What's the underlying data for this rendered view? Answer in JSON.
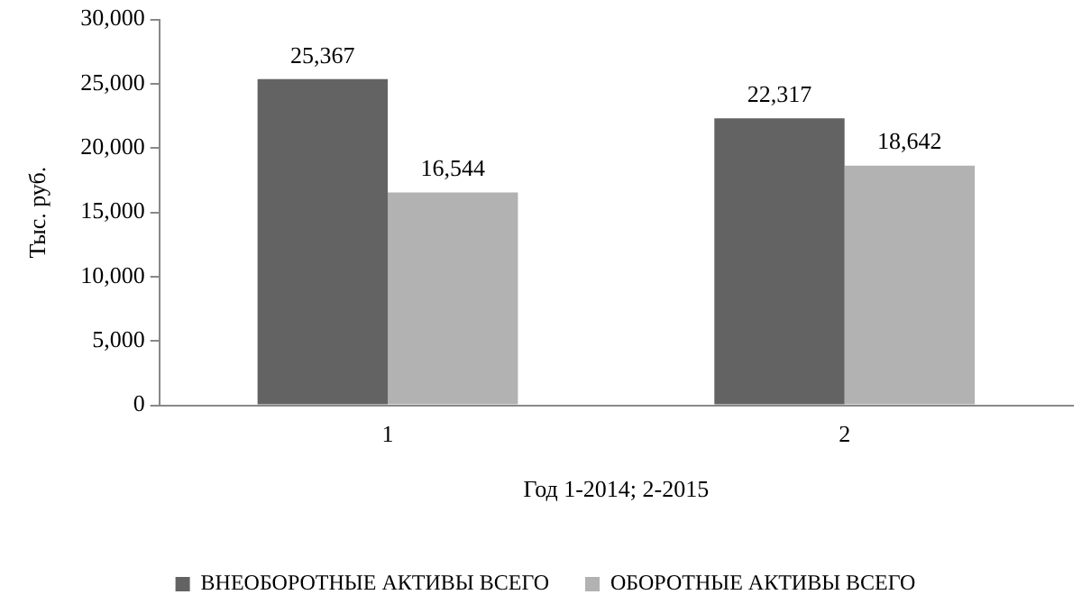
{
  "chart_data": {
    "type": "bar",
    "ylabel": "Тыс. руб.",
    "xlabel": "Год 1-2014; 2-2015",
    "categories": [
      "1",
      "2"
    ],
    "series": [
      {
        "name": "ВНЕОБОРОТНЫЕ АКТИВЫ ВСЕГО",
        "color": "#636363",
        "values": [
          25367,
          22317
        ],
        "value_labels": [
          "25,367",
          "22,317"
        ]
      },
      {
        "name": "ОБОРОТНЫЕ АКТИВЫ ВСЕГО",
        "color": "#b2b2b2",
        "values": [
          16544,
          18642
        ],
        "value_labels": [
          "16,544",
          "18,642"
        ]
      }
    ],
    "ylim": [
      0,
      30000
    ],
    "yticks": [
      0,
      {
        "value": 5000,
        "label": "5,000"
      },
      {
        "value": 10000,
        "label": "10,000"
      },
      {
        "value": 15000,
        "label": "15,000"
      },
      {
        "value": 20000,
        "label": "20,000"
      },
      {
        "value": 25000,
        "label": "25,000"
      },
      {
        "value": 30000,
        "label": "30,000"
      }
    ],
    "grid": false,
    "legend": "bottom"
  }
}
